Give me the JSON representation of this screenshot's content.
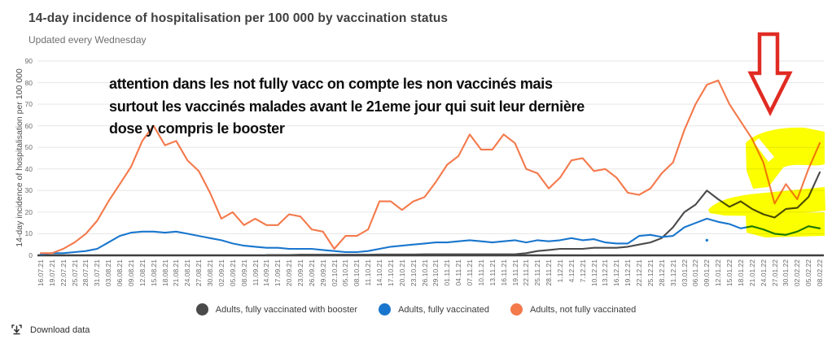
{
  "header": {
    "title": "14-day incidence of hospitalisation per 100 000 by vaccination status",
    "subtitle": "Updated every Wednesday"
  },
  "annotation": {
    "lines": [
      "attention dans les not fully vacc on compte les non vaccinés mais",
      "surtout les vaccinés malades avant le 21eme jour qui suit leur dernière",
      "dose y compris le booster"
    ]
  },
  "legend": [
    {
      "label": "Adults, fully vaccinated with booster",
      "color": "#4a4a4a"
    },
    {
      "label": "Adults, fully vaccinated",
      "color": "#1976cd"
    },
    {
      "label": "Adults, not fully vaccinated",
      "color": "#f4794b"
    }
  ],
  "footer": {
    "download_label": "Download data"
  },
  "drawn_annotations": {
    "arrow_color": "#e02b23",
    "highlight_color": "#fcff00"
  },
  "colors": {
    "grid": "#e6e6e6",
    "axis": "#3f3f3f",
    "tick_text": "#6b6b6b"
  },
  "chart_data": {
    "type": "line",
    "title": "14-day incidence of hospitalisation per 100 000 by vaccination status",
    "subtitle": "Updated every Wednesday",
    "ylabel": "14-day incidence of hospitalisation per 100 000",
    "xlabel": "",
    "ylim": [
      0,
      90
    ],
    "y_ticks": [
      0,
      10,
      20,
      30,
      40,
      50,
      60,
      70,
      80,
      90
    ],
    "grid": "horizontal",
    "legend_position": "bottom-center",
    "categories": [
      "16.07.21",
      "19.07.21",
      "22.07.21",
      "25.07.21",
      "28.07.21",
      "31.07.21",
      "03.08.21",
      "06.08.21",
      "09.08.21",
      "12.08.21",
      "15.08.21",
      "18.08.21",
      "21.08.21",
      "24.08.21",
      "27.08.21",
      "30.08.21",
      "02.09.21",
      "05.09.21",
      "08.09.21",
      "11.09.21",
      "14.09.21",
      "17.09.21",
      "20.09.21",
      "23.09.21",
      "26.09.21",
      "29.09.21",
      "02.10.21",
      "05.10.21",
      "08.10.21",
      "11.10.21",
      "14.10.21",
      "17.10.21",
      "20.10.21",
      "23.10.21",
      "26.10.21",
      "29.10.21",
      "01.11.21",
      "04.11.21",
      "07.11.21",
      "10.11.21",
      "13.11.21",
      "16.11.21",
      "19.11.21",
      "22.11.21",
      "25.11.21",
      "28.11.21",
      "1.12.21",
      "4.12.21",
      "7.12.21",
      "10.12.21",
      "13.12.21",
      "16.12.21",
      "19.12.21",
      "22.12.21",
      "25.12.21",
      "28.12.21",
      "31.12.21",
      "03.01.22",
      "06.01.22",
      "09.01.22",
      "12.01.22",
      "15.01.22",
      "18.01.22",
      "21.01.22",
      "24.01.22",
      "27.01.22",
      "30.01.22",
      "02.02.22",
      "05.02.22",
      "08.02.22"
    ],
    "series": [
      {
        "name": "Adults, fully vaccinated with booster",
        "color": "#4a4a4a",
        "values": [
          null,
          null,
          null,
          null,
          null,
          null,
          null,
          null,
          null,
          null,
          null,
          null,
          null,
          null,
          null,
          null,
          null,
          null,
          null,
          null,
          0.2,
          0.2,
          0.2,
          0.3,
          0.3,
          0.3,
          0.3,
          0.3,
          0.3,
          0.3,
          0.4,
          0.4,
          0.4,
          0.4,
          0.5,
          0.5,
          0.5,
          0.5,
          0.5,
          0.5,
          0.5,
          0.5,
          0.5,
          1,
          2,
          2.5,
          3,
          3,
          3,
          3.5,
          3.5,
          3.5,
          4,
          5,
          6,
          8,
          13,
          20,
          23.5,
          30,
          26,
          22.5,
          25,
          21.5,
          19,
          17.5,
          21.5,
          22,
          27,
          38.5
        ]
      },
      {
        "name": "Adults, fully vaccinated",
        "color": "#1976cd",
        "values": [
          0.5,
          1,
          1,
          1.5,
          2,
          3,
          6,
          9,
          10.5,
          11,
          11,
          10.5,
          11,
          10,
          9,
          8,
          7,
          5.5,
          4.5,
          4,
          3.5,
          3.5,
          3,
          3,
          3,
          2.5,
          2,
          1.5,
          1.5,
          2,
          3,
          4,
          4.5,
          5,
          5.5,
          6,
          6,
          6.5,
          7,
          6.5,
          6,
          6.5,
          7,
          6,
          7,
          6.5,
          7,
          8,
          7,
          7.5,
          6,
          5.5,
          5.5,
          9,
          9.5,
          8.5,
          9,
          13,
          15,
          17,
          15.5,
          14.5,
          12.5,
          13.5,
          12,
          10,
          9.5,
          11,
          13.5,
          12.5
        ]
      },
      {
        "name": "Adults, not fully vaccinated",
        "color": "#f4794b",
        "values": [
          1,
          1,
          3,
          6,
          10,
          16,
          25,
          33,
          41,
          53,
          60,
          51,
          53,
          44,
          39,
          29,
          17,
          20,
          14,
          17,
          14,
          14,
          19,
          18,
          12,
          11,
          3,
          9,
          9,
          12,
          25,
          25,
          21,
          25,
          27,
          34,
          42,
          46,
          56,
          49,
          49,
          56,
          52,
          40,
          38,
          31,
          36,
          44,
          45,
          39,
          40,
          36,
          29,
          28,
          31,
          38,
          43,
          58,
          70,
          79,
          81,
          70,
          62,
          54,
          43,
          24,
          33,
          26,
          40,
          52
        ]
      }
    ],
    "stray_point": {
      "series": "Adults, fully vaccinated",
      "x_index": 59,
      "value": 7,
      "color": "#1976cd"
    }
  }
}
